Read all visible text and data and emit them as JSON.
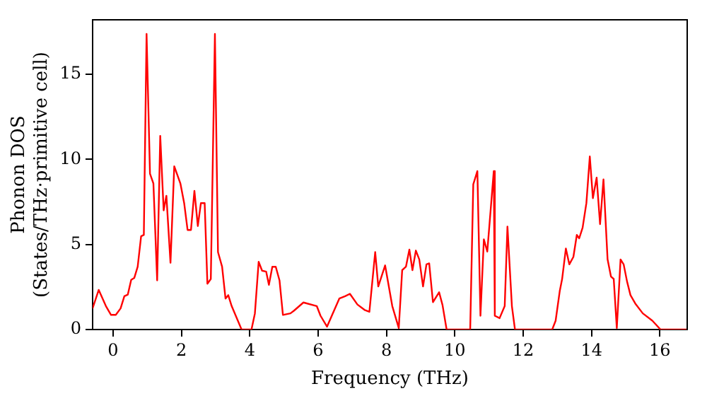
{
  "chart_data": {
    "type": "line",
    "xlabel": "Frequency (THz)",
    "ylabel": "Phonon DOS\n(States/THz·primitive cell)",
    "x": [
      -0.6,
      -0.42,
      -0.21,
      -0.06,
      0.08,
      0.22,
      0.33,
      0.43,
      0.53,
      0.62,
      0.72,
      0.82,
      0.9,
      0.98,
      1.08,
      1.18,
      1.29,
      1.38,
      1.48,
      1.56,
      1.68,
      1.79,
      1.97,
      2.08,
      2.18,
      2.28,
      2.38,
      2.48,
      2.57,
      2.68,
      2.76,
      2.86,
      2.98,
      3.07,
      3.19,
      3.29,
      3.37,
      3.47,
      3.76,
      4.05,
      4.15,
      4.26,
      4.36,
      4.48,
      4.56,
      4.66,
      4.76,
      4.87,
      4.97,
      5.19,
      5.29,
      5.57,
      5.96,
      6.07,
      6.26,
      6.4,
      6.62,
      6.79,
      6.93,
      7.15,
      7.36,
      7.5,
      7.67,
      7.76,
      7.96,
      8.17,
      8.36,
      8.46,
      8.57,
      8.67,
      8.76,
      8.86,
      8.96,
      9.07,
      9.17,
      9.25,
      9.36,
      9.54,
      9.64,
      9.76,
      10.45,
      10.54,
      10.66,
      10.75,
      10.85,
      10.95,
      11.14,
      11.17,
      11.31,
      11.46,
      11.54,
      11.67,
      11.76,
      12.85,
      12.95,
      13.07,
      13.14,
      13.25,
      13.35,
      13.47,
      13.57,
      13.64,
      13.74,
      13.85,
      13.95,
      14.04,
      14.15,
      14.25,
      14.35,
      14.47,
      14.57,
      14.65,
      14.74,
      14.85,
      14.94,
      15.04,
      15.14,
      15.28,
      15.5,
      15.78,
      16.02,
      16.78
    ],
    "series": [
      {
        "color": "#ff0000",
        "values": [
          1.24,
          2.33,
          1.38,
          0.86,
          0.86,
          1.24,
          1.96,
          2.05,
          2.92,
          3.03,
          3.69,
          5.48,
          5.56,
          17.37,
          9.16,
          8.58,
          2.89,
          11.38,
          7.0,
          7.86,
          3.92,
          9.59,
          8.58,
          7.43,
          5.85,
          5.85,
          8.15,
          6.08,
          7.43,
          7.43,
          2.69,
          2.97,
          17.37,
          4.55,
          3.69,
          1.82,
          2.02,
          1.38,
          0,
          0,
          0.95,
          3.98,
          3.46,
          3.4,
          2.63,
          3.69,
          3.69,
          2.89,
          0.86,
          0.95,
          1.1,
          1.59,
          1.38,
          0.81,
          0.17,
          0.81,
          1.82,
          1.96,
          2.1,
          1.47,
          1.15,
          1.04,
          4.55,
          2.53,
          3.77,
          1.38,
          0.09,
          3.49,
          3.69,
          4.7,
          3.49,
          4.64,
          4.12,
          2.53,
          3.83,
          3.89,
          1.61,
          2.19,
          1.44,
          0,
          0,
          8.53,
          9.31,
          0.81,
          5.3,
          4.58,
          9.31,
          0.81,
          0.67,
          1.38,
          6.05,
          1.38,
          0,
          0,
          0.52,
          2.25,
          2.97,
          4.76,
          3.83,
          4.27,
          5.56,
          5.36,
          5.99,
          7.43,
          10.17,
          7.72,
          8.93,
          6.19,
          8.82,
          4.12,
          3.11,
          2.97,
          0.09,
          4.12,
          3.83,
          2.82,
          2.02,
          1.53,
          0.95,
          0.52,
          0,
          0
        ]
      }
    ],
    "xlim": [
      -0.6,
      16.8
    ],
    "ylim": [
      0,
      18.2
    ],
    "xticks": [
      0,
      2,
      4,
      6,
      8,
      10,
      12,
      14,
      16
    ],
    "yticks": [
      0,
      5,
      10,
      15
    ],
    "grid": false,
    "legend": false,
    "marker": "none",
    "line_style": "solid"
  }
}
